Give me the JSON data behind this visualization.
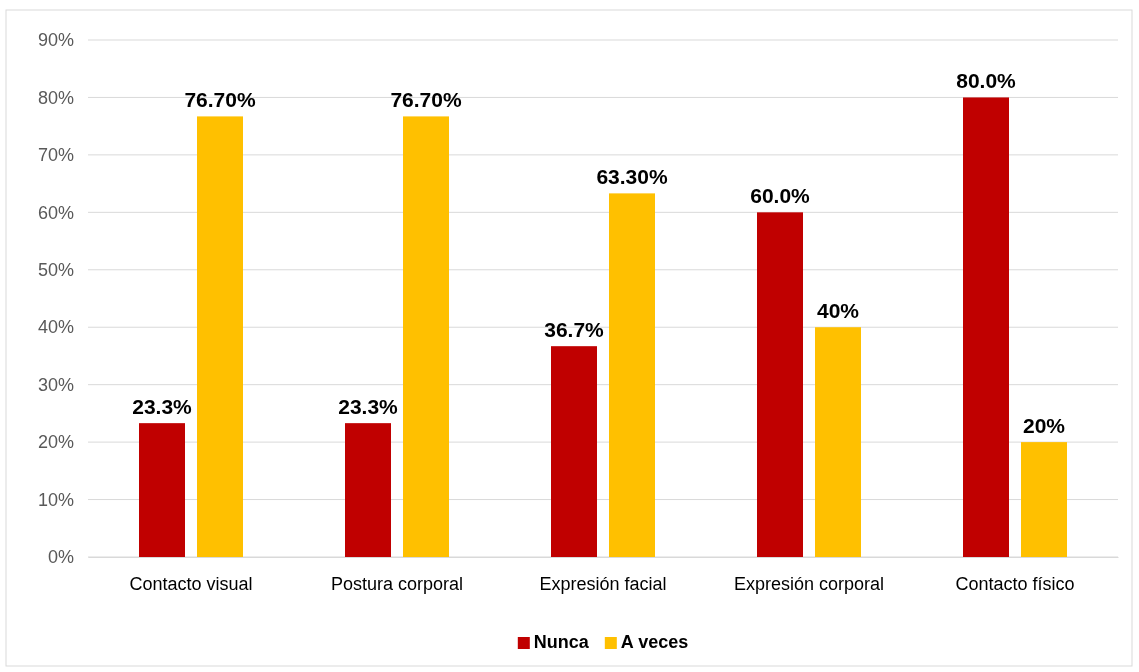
{
  "chart_data": {
    "type": "bar",
    "categories": [
      "Contacto visual",
      "Postura corporal",
      "Expresión facial",
      "Expresión corporal",
      "Contacto físico"
    ],
    "series": [
      {
        "name": "Nunca",
        "color": "#c00000",
        "values": [
          23.3,
          23.3,
          36.7,
          60.0,
          80.0
        ],
        "value_labels": [
          "23.3%",
          "23.3%",
          "36.7%",
          "60.0%",
          "80.0%"
        ]
      },
      {
        "name": "A veces",
        "color": "#ffc000",
        "values": [
          76.7,
          76.7,
          63.3,
          40,
          20
        ],
        "value_labels": [
          "76.70%",
          "76.70%",
          "63.30%",
          "40%",
          "20%"
        ]
      }
    ],
    "ylim": [
      0,
      90
    ],
    "yticks": [
      {
        "value": 0,
        "label": "0%"
      },
      {
        "value": 10,
        "label": "10%"
      },
      {
        "value": 20,
        "label": "20%"
      },
      {
        "value": 30,
        "label": "30%"
      },
      {
        "value": 40,
        "label": "40%"
      },
      {
        "value": 50,
        "label": "50%"
      },
      {
        "value": 60,
        "label": "60%"
      },
      {
        "value": 70,
        "label": "70%"
      },
      {
        "value": 80,
        "label": "80%"
      },
      {
        "value": 90,
        "label": "90%"
      }
    ],
    "grid": "y",
    "legend": "bottom"
  }
}
